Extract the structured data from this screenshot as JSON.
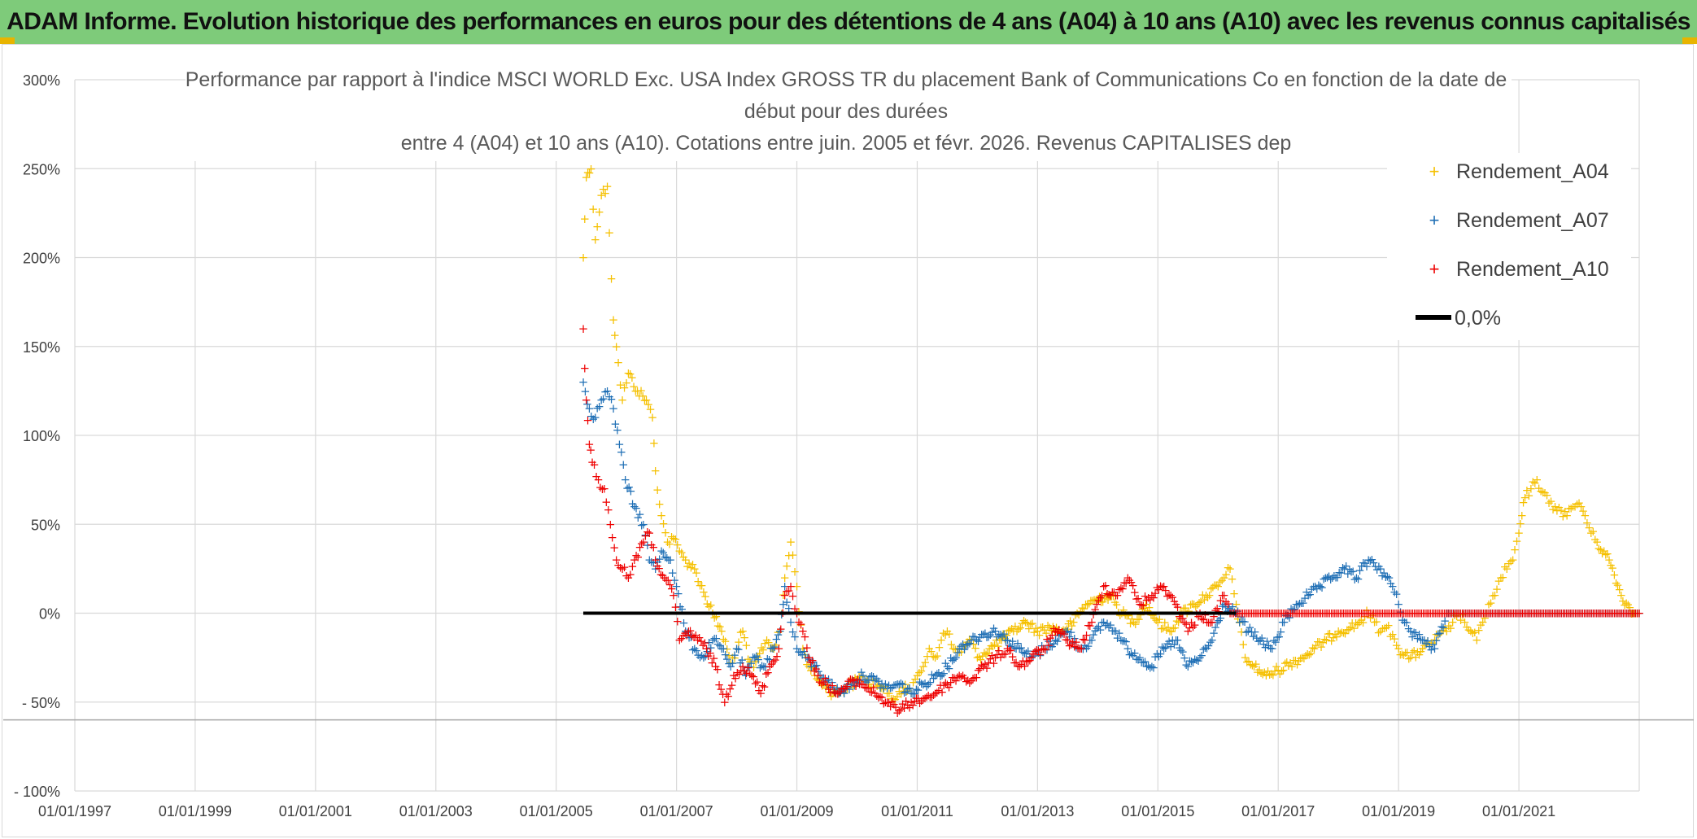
{
  "banner": {
    "title": "ADAM Informe. Evolution historique des performances en euros pour des détentions de 4 ans (A04) à 10 ans (A10) avec les revenus connus capitalisés"
  },
  "chart_data": {
    "type": "scatter",
    "title_lines": [
      "Performance par rapport à l'indice MSCI WORLD Exc. USA Index GROSS TR  du placement Bank of Communications Co en fonction de la date de",
      "début pour des durées",
      "entre 4 (A04) et 10 ans (A10). Cotations entre juin. 2005 et févr. 2026. Revenus CAPITALISES dep"
    ],
    "xlabel": "",
    "ylabel": "",
    "x_range": [
      "1997-01-01",
      "2023-01-01"
    ],
    "x_tick_labels": [
      "01/01/1997",
      "01/01/1999",
      "01/01/2001",
      "01/01/2003",
      "01/01/2005",
      "01/01/2007",
      "01/01/2009",
      "01/01/2011",
      "01/01/2013",
      "01/01/2015",
      "01/01/2017",
      "01/01/2019",
      "01/01/2021"
    ],
    "x_tick_years": [
      1997,
      1999,
      2001,
      2003,
      2005,
      2007,
      2009,
      2011,
      2013,
      2015,
      2017,
      2019,
      2021
    ],
    "ylim": [
      -100,
      300
    ],
    "y_ticks": [
      -100,
      -50,
      0,
      50,
      100,
      150,
      200,
      250,
      300
    ],
    "y_tick_labels": [
      "- 100%",
      "- 50%",
      "0%",
      "50%",
      "100%",
      "150%",
      "200%",
      "250%",
      "300%"
    ],
    "reference_line": {
      "name": "0,0%",
      "value": 0,
      "x_start": 2005.45,
      "x_end": 2023.0,
      "color": "#000000"
    },
    "floor_line": {
      "value": -60,
      "color": "#a6a6a6"
    },
    "legend": {
      "position": "top-right",
      "entries": [
        {
          "label": "Rendement_A04",
          "marker": "+",
          "color": "#f5c000"
        },
        {
          "label": "Rendement_A07",
          "marker": "+",
          "color": "#1f6fb5"
        },
        {
          "label": "Rendement_A10",
          "marker": "+",
          "color": "#ee0000"
        },
        {
          "label": "0,0%",
          "marker": "line",
          "color": "#000000"
        }
      ]
    },
    "series": [
      {
        "name": "Rendement_A04",
        "color": "#f5c000",
        "x": [
          2005.45,
          2005.5,
          2005.58,
          2005.65,
          2005.75,
          2005.85,
          2005.95,
          2006.0,
          2006.1,
          2006.2,
          2006.35,
          2006.5,
          2006.6,
          2006.65,
          2006.75,
          2006.85,
          2006.95,
          2007.05,
          2007.15,
          2007.3,
          2007.45,
          2007.6,
          2007.75,
          2007.9,
          2008.0,
          2008.1,
          2008.25,
          2008.35,
          2008.5,
          2008.62,
          2008.72,
          2008.8,
          2008.9,
          2009.0,
          2009.1,
          2009.2,
          2009.3,
          2009.45,
          2009.6,
          2009.75,
          2009.9,
          2010.0,
          2010.1,
          2010.2,
          2010.3,
          2010.4,
          2010.5,
          2010.6,
          2010.7,
          2010.8,
          2010.9,
          2011.0,
          2011.1,
          2011.2,
          2011.3,
          2011.4,
          2011.5,
          2011.6,
          2011.7,
          2011.8,
          2011.9,
          2012.0,
          2012.2,
          2012.4,
          2012.6,
          2012.8,
          2013.0,
          2013.2,
          2013.4,
          2013.6,
          2013.8,
          2014.0,
          2014.2,
          2014.4,
          2014.6,
          2014.8,
          2015.0,
          2015.2,
          2015.4,
          2015.6,
          2015.8,
          2016.0,
          2016.1,
          2016.2,
          2016.3,
          2016.45,
          2016.6,
          2016.8,
          2017.0,
          2017.2,
          2017.4,
          2017.6,
          2017.8,
          2018.0,
          2018.2,
          2018.35,
          2018.5,
          2018.6,
          2018.7,
          2018.8,
          2018.9,
          2019.0,
          2019.2,
          2019.4,
          2019.6,
          2019.8,
          2019.9,
          2020.0,
          2020.1,
          2020.2,
          2020.3,
          2020.4,
          2020.5,
          2020.6,
          2020.7,
          2020.8,
          2020.9,
          2021.0,
          2021.05,
          2021.1,
          2021.2,
          2021.3,
          2021.4,
          2021.5,
          2021.6,
          2021.7,
          2021.8,
          2021.9,
          2022.0,
          2022.1,
          2022.2,
          2022.3,
          2022.5,
          2022.7,
          2022.9,
          2023.0
        ],
        "y": [
          200,
          245,
          250,
          210,
          235,
          240,
          165,
          150,
          120,
          135,
          125,
          120,
          110,
          80,
          55,
          40,
          42,
          35,
          30,
          25,
          12,
          0,
          -10,
          -28,
          -20,
          -10,
          -35,
          -25,
          -15,
          -20,
          -10,
          20,
          40,
          15,
          -20,
          -30,
          -35,
          -40,
          -45,
          -43,
          -40,
          -38,
          -35,
          -40,
          -38,
          -42,
          -45,
          -48,
          -44,
          -40,
          -45,
          -35,
          -30,
          -20,
          -25,
          -15,
          -10,
          -20,
          -22,
          -18,
          -15,
          -25,
          -20,
          -15,
          -10,
          -5,
          -10,
          -8,
          -10,
          -5,
          5,
          8,
          10,
          0,
          -5,
          5,
          -5,
          -10,
          0,
          5,
          10,
          15,
          20,
          25,
          5,
          -25,
          -30,
          -35,
          -32,
          -28,
          -25,
          -20,
          -15,
          -10,
          -8,
          -5,
          0,
          -5,
          -10,
          -8,
          -12,
          -20,
          -25,
          -20,
          -15,
          -10,
          -5,
          0,
          -5,
          -10,
          -15,
          -5,
          5,
          10,
          20,
          25,
          30,
          45,
          55,
          65,
          70,
          75,
          68,
          62,
          60,
          58,
          55,
          60,
          62,
          55,
          45,
          40,
          30,
          10,
          0,
          0
        ]
      },
      {
        "name": "Rendement_A07",
        "color": "#1f6fb5",
        "x": [
          2005.45,
          2005.55,
          2005.65,
          2005.75,
          2005.85,
          2005.95,
          2006.05,
          2006.15,
          2006.3,
          2006.45,
          2006.55,
          2006.65,
          2006.75,
          2006.9,
          2007.0,
          2007.15,
          2007.3,
          2007.45,
          2007.6,
          2007.75,
          2007.9,
          2008.0,
          2008.15,
          2008.3,
          2008.45,
          2008.6,
          2008.72,
          2008.8,
          2008.9,
          2009.0,
          2009.15,
          2009.3,
          2009.5,
          2009.7,
          2009.9,
          2010.1,
          2010.3,
          2010.5,
          2010.7,
          2010.9,
          2011.1,
          2011.3,
          2011.5,
          2011.7,
          2011.9,
          2012.1,
          2012.3,
          2012.5,
          2012.7,
          2012.9,
          2013.1,
          2013.3,
          2013.5,
          2013.7,
          2013.9,
          2014.1,
          2014.3,
          2014.5,
          2014.7,
          2014.9,
          2015.1,
          2015.3,
          2015.5,
          2015.7,
          2015.9,
          2016.1,
          2016.3,
          2016.5,
          2016.7,
          2016.9,
          2017.1,
          2017.3,
          2017.5,
          2017.7,
          2017.9,
          2018.1,
          2018.3,
          2018.5,
          2018.7,
          2018.9,
          2019.0,
          2019.1,
          2019.2,
          2019.4,
          2019.6,
          2019.8,
          2020.0,
          2020.5,
          2021.0,
          2021.5,
          2022.0,
          2022.5,
          2023.0
        ],
        "y": [
          130,
          115,
          110,
          120,
          125,
          115,
          95,
          75,
          60,
          50,
          30,
          25,
          35,
          30,
          15,
          -10,
          -20,
          -25,
          -15,
          -20,
          -30,
          -20,
          -35,
          -25,
          -30,
          -20,
          -10,
          15,
          -5,
          -20,
          -25,
          -30,
          -38,
          -45,
          -40,
          -35,
          -38,
          -42,
          -40,
          -45,
          -40,
          -35,
          -30,
          -20,
          -15,
          -12,
          -10,
          -15,
          -20,
          -25,
          -20,
          -15,
          -10,
          -20,
          -15,
          -5,
          -10,
          -20,
          -25,
          -30,
          -20,
          -15,
          -30,
          -25,
          -15,
          5,
          0,
          -10,
          -15,
          -20,
          -5,
          5,
          10,
          15,
          20,
          25,
          20,
          30,
          25,
          15,
          5,
          -5,
          -10,
          -15,
          -20,
          0,
          0,
          0,
          0,
          0,
          0,
          0,
          0
        ]
      },
      {
        "name": "Rendement_A10",
        "color": "#ee0000",
        "x": [
          2005.45,
          2005.5,
          2005.55,
          2005.6,
          2005.7,
          2005.8,
          2005.9,
          2006.0,
          2006.1,
          2006.2,
          2006.3,
          2006.45,
          2006.55,
          2006.65,
          2006.8,
          2006.95,
          2007.05,
          2007.2,
          2007.35,
          2007.5,
          2007.65,
          2007.8,
          2007.95,
          2008.1,
          2008.25,
          2008.4,
          2008.55,
          2008.7,
          2008.8,
          2008.9,
          2009.0,
          2009.1,
          2009.2,
          2009.35,
          2009.5,
          2009.65,
          2009.8,
          2009.95,
          2010.1,
          2010.3,
          2010.5,
          2010.7,
          2010.9,
          2011.1,
          2011.3,
          2011.5,
          2011.7,
          2011.9,
          2012.1,
          2012.3,
          2012.5,
          2012.7,
          2012.9,
          2013.1,
          2013.3,
          2013.5,
          2013.7,
          2013.9,
          2014.1,
          2014.3,
          2014.5,
          2014.7,
          2014.9,
          2015.1,
          2015.3,
          2015.5,
          2015.7,
          2015.9,
          2016.1,
          2016.2,
          2016.5,
          2017.0,
          2017.5,
          2018.0,
          2018.5,
          2019.0,
          2019.5,
          2020.0,
          2020.5,
          2021.0,
          2021.5,
          2022.0,
          2022.5,
          2023.0
        ],
        "y": [
          160,
          120,
          95,
          85,
          75,
          70,
          50,
          30,
          25,
          20,
          30,
          40,
          45,
          30,
          20,
          10,
          -15,
          -10,
          -15,
          -20,
          -30,
          -50,
          -35,
          -30,
          -35,
          -45,
          -30,
          -20,
          10,
          15,
          0,
          -10,
          -25,
          -35,
          -40,
          -45,
          -42,
          -38,
          -40,
          -45,
          -50,
          -55,
          -50,
          -48,
          -45,
          -40,
          -35,
          -38,
          -30,
          -25,
          -20,
          -30,
          -25,
          -20,
          -10,
          -15,
          -20,
          -5,
          15,
          10,
          20,
          5,
          10,
          15,
          5,
          -10,
          0,
          -5,
          10,
          0,
          0,
          0,
          0,
          0,
          0,
          0,
          0,
          0,
          0,
          0,
          0,
          0,
          0,
          0
        ]
      }
    ]
  }
}
